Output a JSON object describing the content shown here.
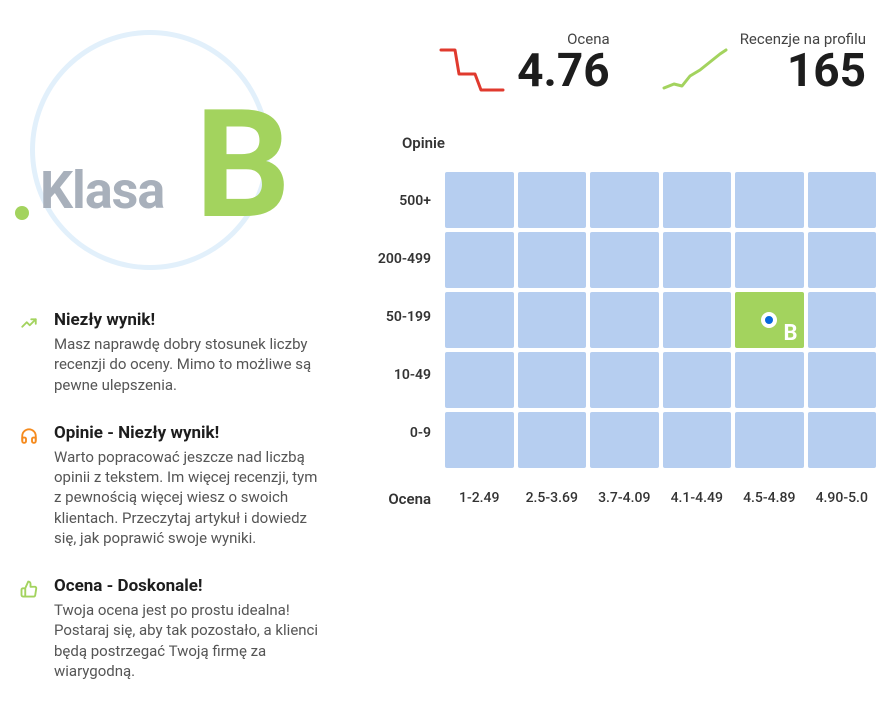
{
  "class_badge": {
    "label": "Klasa",
    "grade": "B",
    "accent_color": "#a3d35e",
    "label_color": "#a8b0bb",
    "circle_color": "#e2f0fb"
  },
  "stats": {
    "rating": {
      "label": "Ocena",
      "value": "4.76",
      "spark_color": "#e03a2e",
      "trend": "down"
    },
    "reviews": {
      "label": "Recenzje na profilu",
      "value": "165",
      "spark_color": "#a3d35e",
      "trend": "up"
    }
  },
  "info": [
    {
      "icon": "trend-up",
      "icon_color": "#a3d35e",
      "title": "Niezły wynik!",
      "text": "Masz naprawdę dobry stosunek liczby recenzji do oceny. Mimo to możliwe są pewne ulepszenia."
    },
    {
      "icon": "headphones",
      "icon_color": "#f58b1e",
      "title": "Opinie - Niezły wynik!",
      "text": "Warto popracować jeszcze nad liczbą opinii z tekstem. Im więcej recenzji, tym z pewnością więcej wiesz o swoich klientach. Przeczytaj artykuł i dowiedz się, jak poprawić swoje wyniki."
    },
    {
      "icon": "thumb-up",
      "icon_color": "#a3d35e",
      "title": "Ocena - Doskonale!",
      "text": "Twoja ocena jest po prostu idealna! Postaraj się, aby tak pozostało, a klienci będą postrzegać Twoją firmę za wiarygodną."
    }
  ],
  "grid": {
    "y_title": "Opinie",
    "x_title": "Ocena",
    "y_labels": [
      "500+",
      "200-499",
      "50-199",
      "10-49",
      "0-9"
    ],
    "x_labels": [
      "1-2.49",
      "2.5-3.69",
      "3.7-4.09",
      "4.1-4.49",
      "4.5-4.89",
      "4.90-5.0"
    ],
    "cell_color": "#b6cef0",
    "highlight_at": {
      "row": 3,
      "col": 5
    },
    "highlight_color": "#a3d35e",
    "marker_color": "#0768dd",
    "highlight_letter": "B"
  }
}
